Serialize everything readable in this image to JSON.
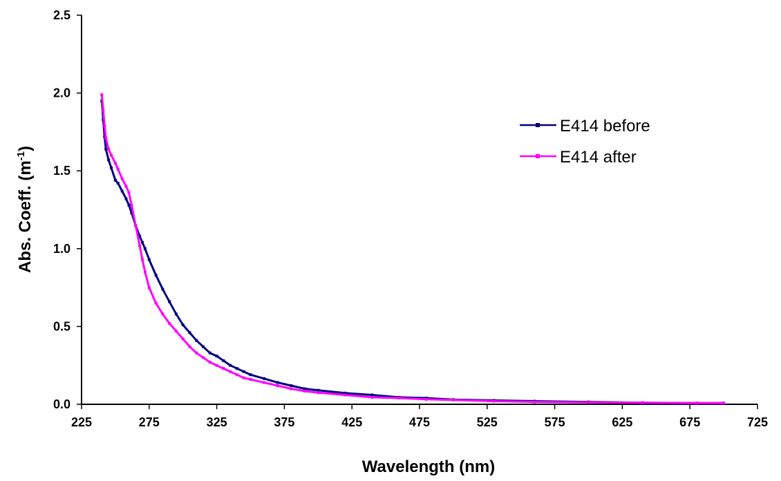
{
  "chart_data": {
    "type": "line",
    "title": "",
    "xlabel": "Wavelength (nm)",
    "ylabel_main": "Abs. Coeff. (m",
    "ylabel_sup": "-1",
    "ylabel_close": ")",
    "xlim": [
      225,
      725
    ],
    "ylim": [
      0,
      2.5
    ],
    "x_ticks": [
      "225",
      "275",
      "325",
      "375",
      "425",
      "475",
      "525",
      "575",
      "625",
      "675",
      "725"
    ],
    "y_ticks": [
      "0.0",
      "0.5",
      "1.0",
      "1.5",
      "2.0",
      "2.5"
    ],
    "grid": false,
    "legend_position": "top-right",
    "series": [
      {
        "name": "E414 before",
        "color": "#000080",
        "x": [
          240,
          241,
          242,
          243,
          245,
          247,
          250,
          252,
          255,
          258,
          260,
          262,
          265,
          268,
          270,
          272,
          275,
          280,
          285,
          290,
          295,
          300,
          305,
          310,
          315,
          320,
          325,
          330,
          335,
          340,
          345,
          350,
          360,
          370,
          380,
          390,
          400,
          420,
          440,
          460,
          480,
          500,
          530,
          560,
          600,
          640,
          680,
          700
        ],
        "y": [
          1.95,
          1.83,
          1.72,
          1.64,
          1.57,
          1.52,
          1.44,
          1.42,
          1.37,
          1.32,
          1.28,
          1.23,
          1.15,
          1.08,
          1.04,
          1.0,
          0.93,
          0.83,
          0.74,
          0.66,
          0.58,
          0.51,
          0.46,
          0.41,
          0.37,
          0.33,
          0.31,
          0.28,
          0.25,
          0.23,
          0.21,
          0.19,
          0.165,
          0.14,
          0.12,
          0.1,
          0.09,
          0.072,
          0.06,
          0.045,
          0.04,
          0.03,
          0.025,
          0.02,
          0.015,
          0.01,
          0.008,
          0.008
        ]
      },
      {
        "name": "E414 after",
        "color": "#FF00FF",
        "x": [
          240,
          241,
          242,
          243,
          245,
          247,
          250,
          252,
          255,
          258,
          260,
          262,
          265,
          268,
          270,
          272,
          275,
          280,
          285,
          290,
          295,
          300,
          305,
          310,
          315,
          320,
          325,
          330,
          335,
          340,
          345,
          350,
          360,
          370,
          380,
          390,
          400,
          420,
          440,
          460,
          480,
          500,
          530,
          560,
          600,
          640,
          680,
          700
        ],
        "y": [
          1.99,
          1.89,
          1.79,
          1.71,
          1.64,
          1.6,
          1.55,
          1.51,
          1.45,
          1.4,
          1.36,
          1.28,
          1.15,
          1.02,
          0.93,
          0.85,
          0.75,
          0.65,
          0.58,
          0.52,
          0.47,
          0.42,
          0.37,
          0.33,
          0.3,
          0.27,
          0.25,
          0.23,
          0.21,
          0.19,
          0.17,
          0.16,
          0.14,
          0.12,
          0.1,
          0.085,
          0.075,
          0.06,
          0.045,
          0.04,
          0.032,
          0.028,
          0.02,
          0.015,
          0.012,
          0.01,
          0.008,
          0.008
        ]
      }
    ]
  }
}
